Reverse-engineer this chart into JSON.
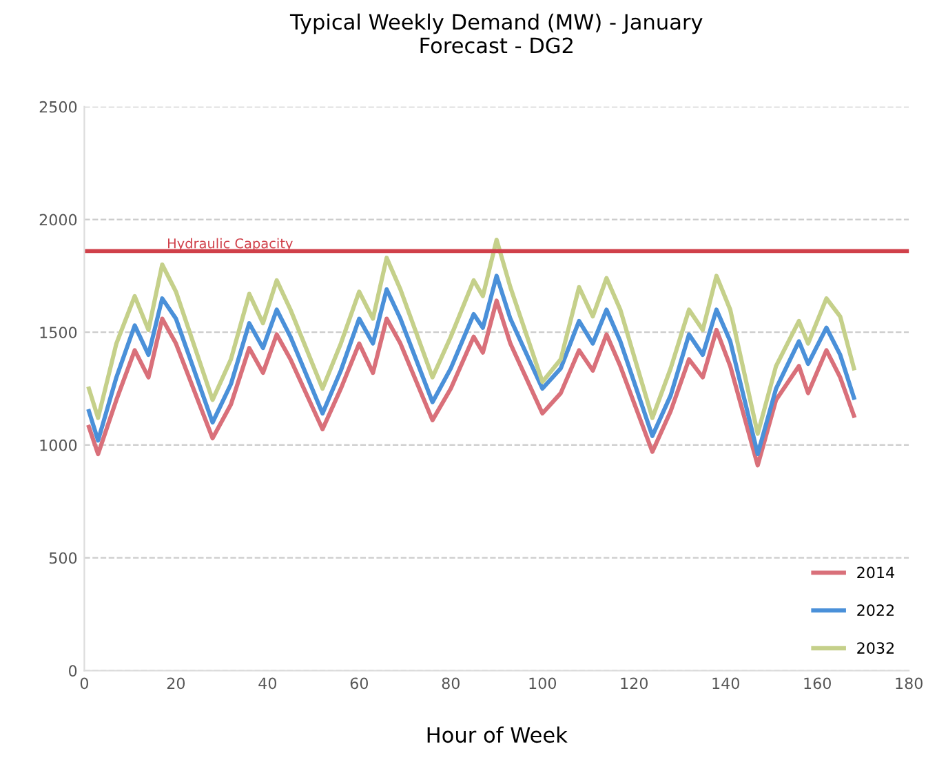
{
  "chart_data": {
    "type": "line",
    "title": "Typical Weekly Demand (MW) - January\nForecast - DG2",
    "xlabel": "Hour of Week",
    "x": [
      1,
      3,
      7,
      11,
      14,
      17,
      20,
      28,
      32,
      36,
      39,
      42,
      45,
      52,
      56,
      60,
      63,
      66,
      69,
      76,
      80,
      85,
      87,
      90,
      93,
      100,
      104,
      108,
      111,
      114,
      117,
      124,
      128,
      132,
      135,
      138,
      141,
      147,
      151,
      156,
      158,
      162,
      165,
      168
    ],
    "series": [
      {
        "name": "2014",
        "color": "#d9707a",
        "values": [
          1080,
          960,
          1200,
          1420,
          1300,
          1560,
          1450,
          1030,
          1180,
          1430,
          1320,
          1490,
          1380,
          1070,
          1250,
          1450,
          1320,
          1560,
          1450,
          1110,
          1250,
          1480,
          1410,
          1640,
          1450,
          1140,
          1230,
          1420,
          1330,
          1490,
          1350,
          970,
          1150,
          1380,
          1300,
          1510,
          1350,
          910,
          1200,
          1350,
          1230,
          1420,
          1300,
          1130
        ]
      },
      {
        "name": "2022",
        "color": "#4a90d9",
        "values": [
          1150,
          1020,
          1300,
          1530,
          1400,
          1650,
          1560,
          1100,
          1270,
          1540,
          1430,
          1600,
          1480,
          1140,
          1330,
          1560,
          1450,
          1690,
          1560,
          1190,
          1340,
          1580,
          1520,
          1750,
          1560,
          1250,
          1340,
          1550,
          1450,
          1600,
          1460,
          1040,
          1220,
          1490,
          1400,
          1600,
          1460,
          960,
          1250,
          1460,
          1360,
          1520,
          1400,
          1210
        ]
      },
      {
        "name": "2032",
        "color": "#c5d08a",
        "values": [
          1250,
          1120,
          1450,
          1660,
          1510,
          1800,
          1680,
          1200,
          1380,
          1670,
          1540,
          1730,
          1600,
          1250,
          1450,
          1680,
          1560,
          1830,
          1690,
          1300,
          1480,
          1730,
          1660,
          1910,
          1700,
          1280,
          1380,
          1700,
          1570,
          1740,
          1600,
          1120,
          1340,
          1600,
          1510,
          1750,
          1600,
          1050,
          1350,
          1550,
          1450,
          1650,
          1570,
          1340
        ]
      }
    ],
    "xlim": [
      0,
      180
    ],
    "xticks": [
      0,
      20,
      40,
      60,
      80,
      100,
      120,
      140,
      160,
      180
    ],
    "ylim": [
      0,
      2500
    ],
    "yticks": [
      0,
      500,
      1000,
      1500,
      2000,
      2500
    ],
    "ref_lines": [
      {
        "axis": "y",
        "value": 1860,
        "label": "Hydraulic Capacity",
        "color": "#d0404a"
      }
    ],
    "grid": "y",
    "legend": "bottom right",
    "marker": "none",
    "line_style": "solid"
  }
}
